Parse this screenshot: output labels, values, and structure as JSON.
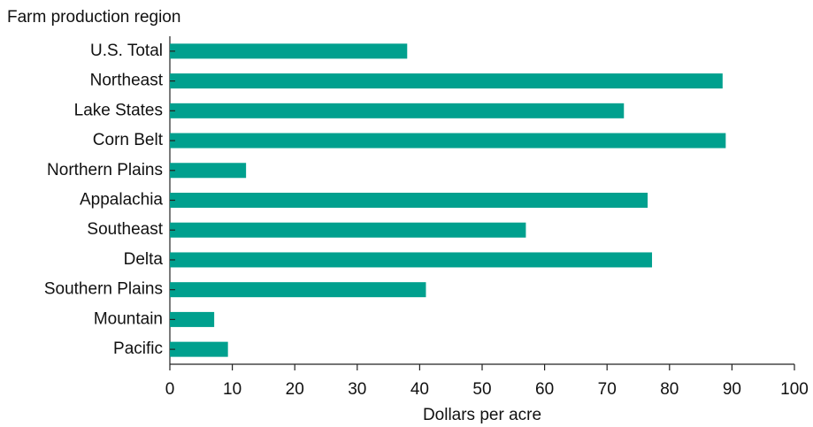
{
  "chart_data": {
    "type": "bar",
    "orientation": "horizontal",
    "y_axis_title": "Farm production region",
    "x_axis_title": "Dollars per acre",
    "categories": [
      "U.S. Total",
      "Northeast",
      "Lake States",
      "Corn Belt",
      "Northern Plains",
      "Appalachia",
      "Southeast",
      "Delta",
      "Southern Plains",
      "Mountain",
      "Pacific"
    ],
    "values": [
      38,
      88.5,
      72.7,
      89,
      12.2,
      76.5,
      57,
      77.2,
      41,
      7.1,
      9.3
    ],
    "color": "#00a08e",
    "xlim": [
      0,
      100
    ],
    "xticks": [
      0,
      10,
      20,
      30,
      40,
      50,
      60,
      70,
      80,
      90,
      100
    ],
    "grid": false
  }
}
